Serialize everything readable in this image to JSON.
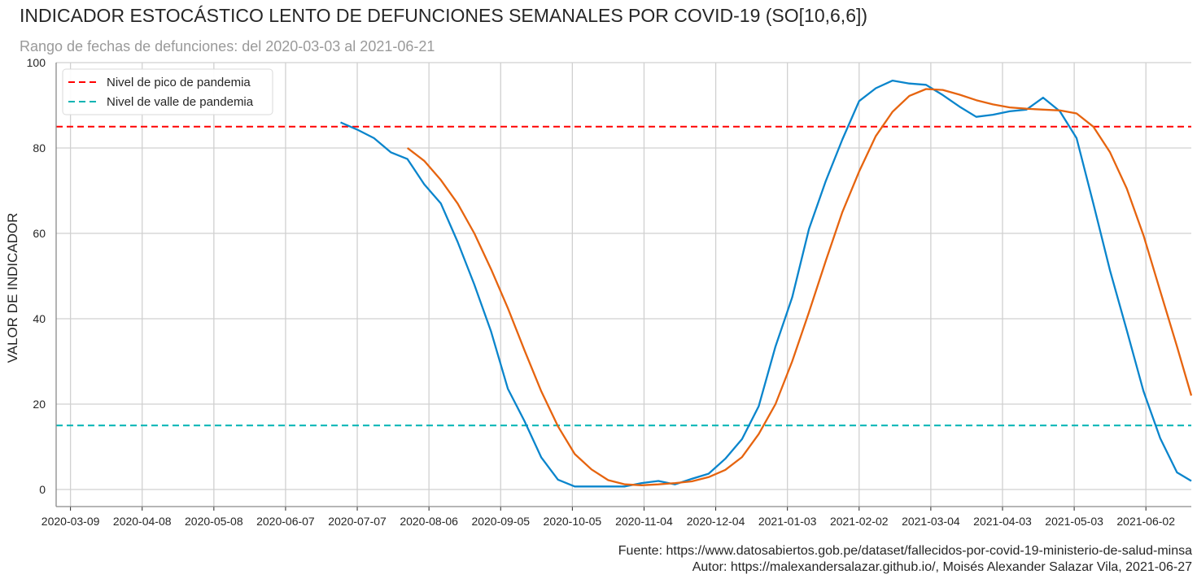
{
  "chart_data": {
    "type": "line",
    "title": "INDICADOR ESTOCÁSTICO LENTO DE DEFUNCIONES SEMANALES POR COVID-19 (SO[10,6,6])",
    "subtitle": "Rango de fechas de defunciones: del 2020-03-03 al 2021-06-21",
    "ylabel": "VALOR DE INDICADOR",
    "xlabel": "",
    "x_ticks": [
      "2020-03-09",
      "2020-04-08",
      "2020-05-08",
      "2020-06-07",
      "2020-07-07",
      "2020-08-06",
      "2020-09-05",
      "2020-10-05",
      "2020-11-04",
      "2020-12-04",
      "2021-01-03",
      "2021-02-02",
      "2021-03-04",
      "2021-04-03",
      "2021-05-03",
      "2021-06-02"
    ],
    "y_ticks": [
      0,
      20,
      40,
      60,
      80,
      100
    ],
    "xlim": [
      "2020-03-03",
      "2021-06-21"
    ],
    "ylim": [
      -4,
      100
    ],
    "grid": true,
    "legend_position": "top-left",
    "hlines": [
      {
        "name": "Nivel de pico de pandemia",
        "y": 85,
        "color": "#ff0000",
        "style": "dashed"
      },
      {
        "name": "Nivel de valle de pandemia",
        "y": 15,
        "color": "#00b3b3",
        "style": "dashed"
      }
    ],
    "series": [
      {
        "color": "#0a85cc",
        "x": [
          "2020-06-30",
          "2020-07-07",
          "2020-07-14",
          "2020-07-21",
          "2020-07-28",
          "2020-08-04",
          "2020-08-11",
          "2020-08-18",
          "2020-08-25",
          "2020-09-01",
          "2020-09-08",
          "2020-09-15",
          "2020-09-22",
          "2020-09-29",
          "2020-10-06",
          "2020-10-13",
          "2020-10-20",
          "2020-10-27",
          "2020-11-03",
          "2020-11-10",
          "2020-11-17",
          "2020-11-24",
          "2020-12-01",
          "2020-12-08",
          "2020-12-15",
          "2020-12-22",
          "2020-12-29",
          "2021-01-05",
          "2021-01-12",
          "2021-01-19",
          "2021-01-26",
          "2021-02-02",
          "2021-02-09",
          "2021-02-16",
          "2021-02-23",
          "2021-03-02",
          "2021-03-09",
          "2021-03-16",
          "2021-03-23",
          "2021-03-30",
          "2021-04-06",
          "2021-04-13",
          "2021-04-20",
          "2021-04-27",
          "2021-05-04",
          "2021-05-11",
          "2021-05-18",
          "2021-05-25",
          "2021-06-01",
          "2021-06-08",
          "2021-06-15",
          "2021-06-21"
        ],
        "y": [
          86,
          84.3,
          82.3,
          79,
          77.4,
          71.5,
          67,
          58,
          48,
          37,
          23.6,
          16,
          7.5,
          2.3,
          0.7,
          0.7,
          0.7,
          0.7,
          1.5,
          2,
          1.2,
          2.5,
          3.7,
          7.2,
          11.8,
          19.5,
          33.5,
          45,
          61,
          72.2,
          82,
          91,
          94,
          95.8,
          95.1,
          94.8,
          92.4,
          89.7,
          87.3,
          87.8,
          88.6,
          89,
          91.8,
          88.6,
          82.3,
          67,
          51.3,
          37.3,
          23,
          12,
          4,
          2
        ]
      },
      {
        "color": "#e6640f",
        "x": [
          "2020-07-28",
          "2020-08-04",
          "2020-08-11",
          "2020-08-18",
          "2020-08-25",
          "2020-09-01",
          "2020-09-08",
          "2020-09-15",
          "2020-09-22",
          "2020-09-29",
          "2020-10-06",
          "2020-10-13",
          "2020-10-20",
          "2020-10-27",
          "2020-11-03",
          "2020-11-10",
          "2020-11-17",
          "2020-11-24",
          "2020-12-01",
          "2020-12-08",
          "2020-12-15",
          "2020-12-22",
          "2020-12-29",
          "2021-01-05",
          "2021-01-12",
          "2021-01-19",
          "2021-01-26",
          "2021-02-02",
          "2021-02-09",
          "2021-02-16",
          "2021-02-23",
          "2021-03-02",
          "2021-03-09",
          "2021-03-16",
          "2021-03-23",
          "2021-03-30",
          "2021-04-06",
          "2021-04-13",
          "2021-04-20",
          "2021-04-27",
          "2021-05-04",
          "2021-05-11",
          "2021-05-18",
          "2021-05-25",
          "2021-06-01",
          "2021-06-08",
          "2021-06-15",
          "2021-06-21"
        ],
        "y": [
          80,
          77,
          72.5,
          67,
          60,
          51.6,
          42.5,
          32.6,
          23,
          14.8,
          8.3,
          4.7,
          2.2,
          1.2,
          1,
          1.2,
          1.5,
          1.9,
          2.9,
          4.6,
          7.6,
          13,
          20,
          30,
          41.5,
          53.5,
          65,
          74.5,
          82.8,
          88.5,
          92.2,
          93.8,
          93.6,
          92.5,
          91.2,
          90.2,
          89.5,
          89.2,
          89,
          88.8,
          88.1,
          85,
          79,
          70.5,
          59.5,
          46.5,
          33.5,
          22
        ]
      }
    ]
  },
  "footer": {
    "source": "Fuente: https://www.datosabiertos.gob.pe/dataset/fallecidos-por-covid-19-ministerio-de-salud-minsa",
    "author": "Autor: https://malexandersalazar.github.io/, Moisés Alexander Salazar Vila, 2021-06-27"
  }
}
